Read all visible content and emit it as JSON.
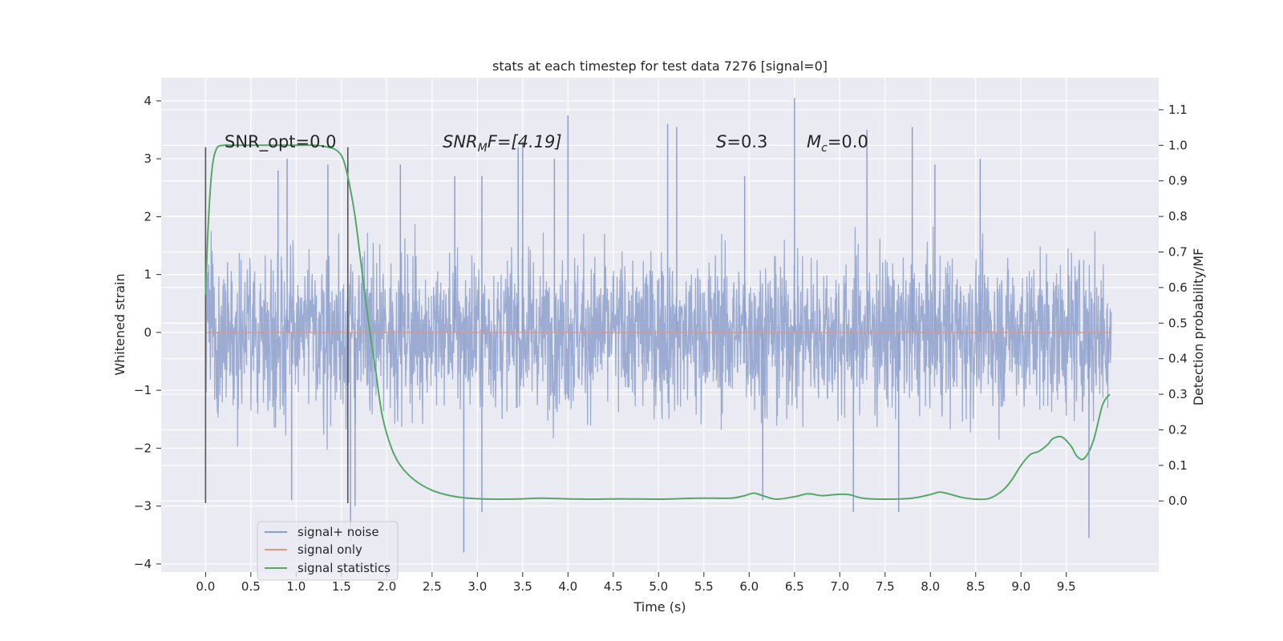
{
  "chart_data": {
    "type": "line",
    "title": "stats at each timestep for test data 7276 [signal=0]",
    "xlabel": "Time (s)",
    "ylabel": "Whitened strain",
    "y2label": "Detection probability/MF",
    "xlim": [
      -0.49,
      10.52
    ],
    "ylim": [
      -4.14,
      4.4
    ],
    "y2lim": [
      -0.2,
      1.19
    ],
    "xticks": [
      "0.0",
      "0.5",
      "1.0",
      "1.5",
      "2.0",
      "2.5",
      "3.0",
      "3.5",
      "4.0",
      "4.5",
      "5.0",
      "5.5",
      "6.0",
      "6.5",
      "7.0",
      "7.5",
      "8.0",
      "8.5",
      "9.0",
      "9.5"
    ],
    "yticks": [
      "4",
      "3",
      "2",
      "1",
      "0",
      "−1",
      "−2",
      "−3",
      "−4"
    ],
    "y2ticks": [
      "1.1",
      "1.0",
      "0.9",
      "0.8",
      "0.7",
      "0.6",
      "0.5",
      "0.4",
      "0.3",
      "0.2",
      "0.1",
      "0.0"
    ],
    "grid": true,
    "legend_position": "lower-left",
    "series": [
      {
        "name": "signal+ noise",
        "color": "#8da0cb",
        "description_of_values": "dense noise between about −3.3 and 4.0, t in [0, 10)",
        "t_range": [
          0,
          10
        ],
        "envelope": {
          "typical_low": -1.3,
          "typical_high": 1.35,
          "peak_high": 4.05,
          "peak_low": -3.8
        },
        "spikes": [
          [
            0.8,
            2.8
          ],
          [
            0.9,
            3.0
          ],
          [
            1.35,
            2.9
          ],
          [
            2.15,
            2.9
          ],
          [
            2.75,
            2.7
          ],
          [
            3.05,
            2.7
          ],
          [
            3.45,
            3.2
          ],
          [
            3.5,
            3.3
          ],
          [
            3.85,
            3.0
          ],
          [
            4.0,
            3.75
          ],
          [
            5.1,
            3.6
          ],
          [
            5.2,
            3.55
          ],
          [
            5.95,
            2.7
          ],
          [
            6.5,
            4.05
          ],
          [
            7.3,
            3.5
          ],
          [
            7.8,
            3.55
          ],
          [
            8.05,
            2.9
          ],
          [
            8.55,
            3.0
          ],
          [
            2.85,
            -3.8
          ],
          [
            1.6,
            -3.6
          ],
          [
            1.65,
            -3.0
          ],
          [
            3.05,
            -3.1
          ],
          [
            9.75,
            -3.55
          ],
          [
            7.15,
            -3.1
          ],
          [
            7.65,
            -3.1
          ],
          [
            6.15,
            -2.9
          ],
          [
            0.95,
            -2.9
          ]
        ]
      },
      {
        "name": "signal only",
        "color": "#e5957a",
        "values_desc": "constant 0",
        "x": [
          0,
          10
        ],
        "y": [
          0,
          0
        ]
      },
      {
        "name": "signal statistics",
        "color": "#55a868",
        "axis": "right",
        "x": [
          0.0,
          0.03,
          0.07,
          0.12,
          0.2,
          0.3,
          0.5,
          0.8,
          1.0,
          1.2,
          1.35,
          1.45,
          1.52,
          1.58,
          1.65,
          1.72,
          1.8,
          1.88,
          1.95,
          2.05,
          2.15,
          2.3,
          2.5,
          2.7,
          2.9,
          3.2,
          3.5,
          3.7,
          4.0,
          4.3,
          4.6,
          5.0,
          5.3,
          5.5,
          5.8,
          5.95,
          6.05,
          6.15,
          6.3,
          6.5,
          6.65,
          6.8,
          6.95,
          7.1,
          7.25,
          7.5,
          7.8,
          8.0,
          8.1,
          8.2,
          8.35,
          8.5,
          8.65,
          8.8,
          8.9,
          9.0,
          9.1,
          9.2,
          9.3,
          9.35,
          9.45,
          9.55,
          9.62,
          9.7,
          9.8,
          9.9,
          9.98
        ],
        "y": [
          0.58,
          0.78,
          0.93,
          0.99,
          1.0,
          1.0,
          1.0,
          1.0,
          1.0,
          1.0,
          0.995,
          0.985,
          0.96,
          0.9,
          0.8,
          0.66,
          0.5,
          0.36,
          0.24,
          0.15,
          0.1,
          0.06,
          0.03,
          0.015,
          0.008,
          0.005,
          0.006,
          0.008,
          0.006,
          0.005,
          0.006,
          0.005,
          0.007,
          0.008,
          0.008,
          0.015,
          0.022,
          0.015,
          0.005,
          0.012,
          0.02,
          0.015,
          0.018,
          0.018,
          0.008,
          0.005,
          0.008,
          0.018,
          0.025,
          0.02,
          0.01,
          0.005,
          0.007,
          0.03,
          0.06,
          0.1,
          0.13,
          0.14,
          0.16,
          0.175,
          0.18,
          0.155,
          0.125,
          0.12,
          0.17,
          0.27,
          0.3
        ]
      }
    ],
    "vlines": [
      0.0,
      1.57
    ],
    "annotations": [
      {
        "text": "SNR_opt=0.0",
        "x": 0.2,
        "y": 3.2
      },
      {
        "text_base": "SNR",
        "text_sub": "M",
        "text_tail": "F=[4.19]",
        "x": 2.6,
        "y": 3.2
      },
      {
        "text_italic": "S",
        "text_tail": "=0.3",
        "x": 5.6,
        "y": 3.2
      },
      {
        "text_base": "M",
        "text_sub": "c",
        "text_tail": "=0.0",
        "x": 6.6,
        "y": 3.2
      }
    ]
  }
}
